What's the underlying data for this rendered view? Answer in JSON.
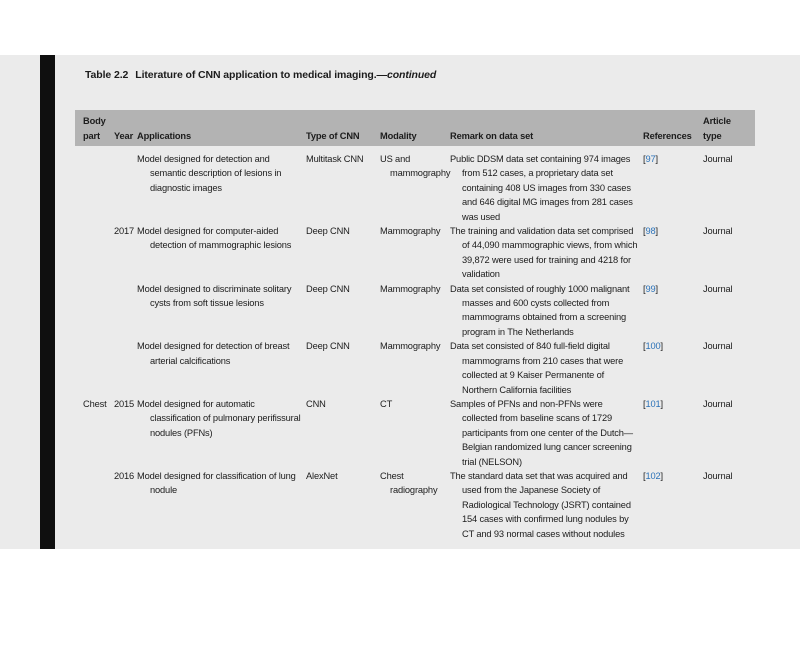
{
  "title": {
    "label": "Table 2.2",
    "text": "Literature of CNN application to medical imaging.—",
    "emphasis": "continued"
  },
  "colors": {
    "page_background": "#ebebeb",
    "table_header_background": "#b3b3b3",
    "spine_bar": "#0f0f0f",
    "body_text": "#1c1c1c",
    "reference_link": "#2b72b8"
  },
  "table": {
    "headers": {
      "body_part": "Body part",
      "year": "Year",
      "applications": "Applications",
      "type_of_cnn": "Type of CNN",
      "modality": "Modality",
      "remark": "Remark on data set",
      "references": "References",
      "article_type": "Article type"
    },
    "ref_open": "[",
    "ref_close": "]",
    "rows": [
      {
        "body_part": "",
        "year": "",
        "applications": "Model designed for detection and semantic description of lesions in diagnostic images",
        "type_of_cnn": "Multitask CNN",
        "modality": "US and mammography",
        "remark": "Public DDSM data set containing 974 images from 512 cases, a proprietary data set containing 408 US images from 330 cases and 646 digital MG images from 281 cases was used",
        "reference": "97",
        "article_type": "Journal"
      },
      {
        "body_part": "",
        "year": "2017",
        "applications": "Model designed for computer-aided detection of mammographic lesions",
        "type_of_cnn": "Deep CNN",
        "modality": "Mammography",
        "remark": "The training and validation data set comprised of 44,090 mammographic views, from which 39,872 were used for training and 4218 for validation",
        "reference": "98",
        "article_type": "Journal"
      },
      {
        "body_part": "",
        "year": "",
        "applications": "Model designed to discriminate solitary cysts from soft tissue lesions",
        "type_of_cnn": "Deep CNN",
        "modality": "Mammography",
        "remark": "Data set consisted of roughly 1000 malignant masses and 600 cysts collected from mammograms obtained from a screening program in The Netherlands",
        "reference": "99",
        "article_type": "Journal"
      },
      {
        "body_part": "",
        "year": "",
        "applications": "Model designed for detection of breast arterial calcifications",
        "type_of_cnn": "Deep CNN",
        "modality": "Mammography",
        "remark": "Data set consisted of 840 full-field digital mammograms from 210 cases that were collected at 9 Kaiser Permanente of Northern California facilities",
        "reference": "100",
        "article_type": "Journal"
      },
      {
        "body_part": "Chest",
        "year": "2015",
        "applications": "Model designed for automatic classification of pulmonary perifissural nodules (PFNs)",
        "type_of_cnn": "CNN",
        "modality": "CT",
        "remark": "Samples of PFNs and non-PFNs were collected from baseline scans of 1729 participants from one center of the Dutch—Belgian randomized lung cancer screening trial (NELSON)",
        "reference": "101",
        "article_type": "Journal"
      },
      {
        "body_part": "",
        "year": "2016",
        "applications": "Model designed for classification of lung nodule",
        "type_of_cnn": "AlexNet",
        "modality": "Chest radiography",
        "remark": "The standard data set that was acquired and used from the Japanese Society of Radiological Technology (JSRT) contained 154 cases with confirmed lung nodules by CT and 93 normal cases without nodules",
        "reference": "102",
        "article_type": "Journal"
      }
    ]
  }
}
